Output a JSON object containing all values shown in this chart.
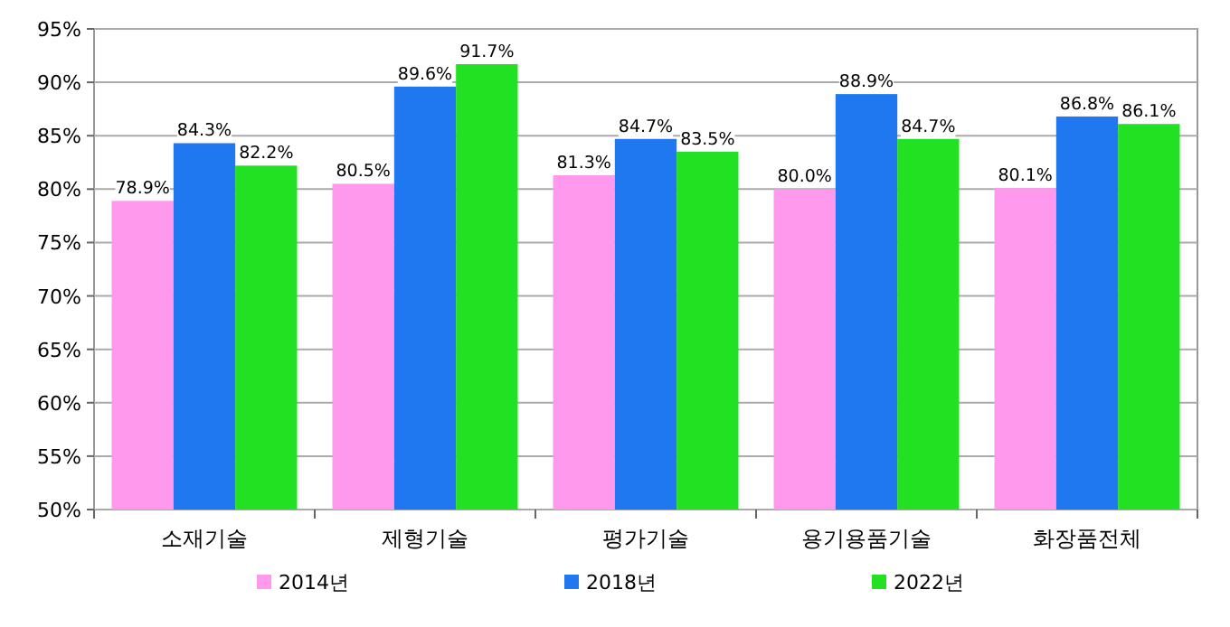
{
  "chart_data": {
    "type": "bar",
    "categories": [
      "소재기술",
      "제형기술",
      "평가기술",
      "용기용품기술",
      "화장품전체"
    ],
    "series": [
      {
        "name": "2014년",
        "color": "#ff99ee",
        "values": [
          78.9,
          80.5,
          81.3,
          80.0,
          80.1
        ],
        "value_labels": [
          "78.9%",
          "80.5%",
          "81.3%",
          "80.0%",
          "80.1%"
        ]
      },
      {
        "name": "2018년",
        "color": "#1f78f0",
        "values": [
          84.3,
          89.6,
          84.7,
          88.9,
          86.8
        ],
        "value_labels": [
          "84.3%",
          "89.6%",
          "84.7%",
          "88.9%",
          "86.8%"
        ]
      },
      {
        "name": "2022년",
        "color": "#22e022",
        "values": [
          82.2,
          91.7,
          83.5,
          84.7,
          86.1
        ],
        "value_labels": [
          "82.2%",
          "91.7%",
          "83.5%",
          "84.7%",
          "86.1%"
        ]
      }
    ],
    "ylim": [
      50,
      95
    ],
    "yticks": [
      {
        "value": 50,
        "label": "50%"
      },
      {
        "value": 55,
        "label": "55%"
      },
      {
        "value": 60,
        "label": "60%"
      },
      {
        "value": 65,
        "label": "65%"
      },
      {
        "value": 70,
        "label": "70%"
      },
      {
        "value": 75,
        "label": "75%"
      },
      {
        "value": 80,
        "label": "80%"
      },
      {
        "value": 85,
        "label": "85%"
      },
      {
        "value": 90,
        "label": "90%"
      },
      {
        "value": 95,
        "label": "95%"
      }
    ],
    "grid": "y",
    "legend": "bottom"
  }
}
